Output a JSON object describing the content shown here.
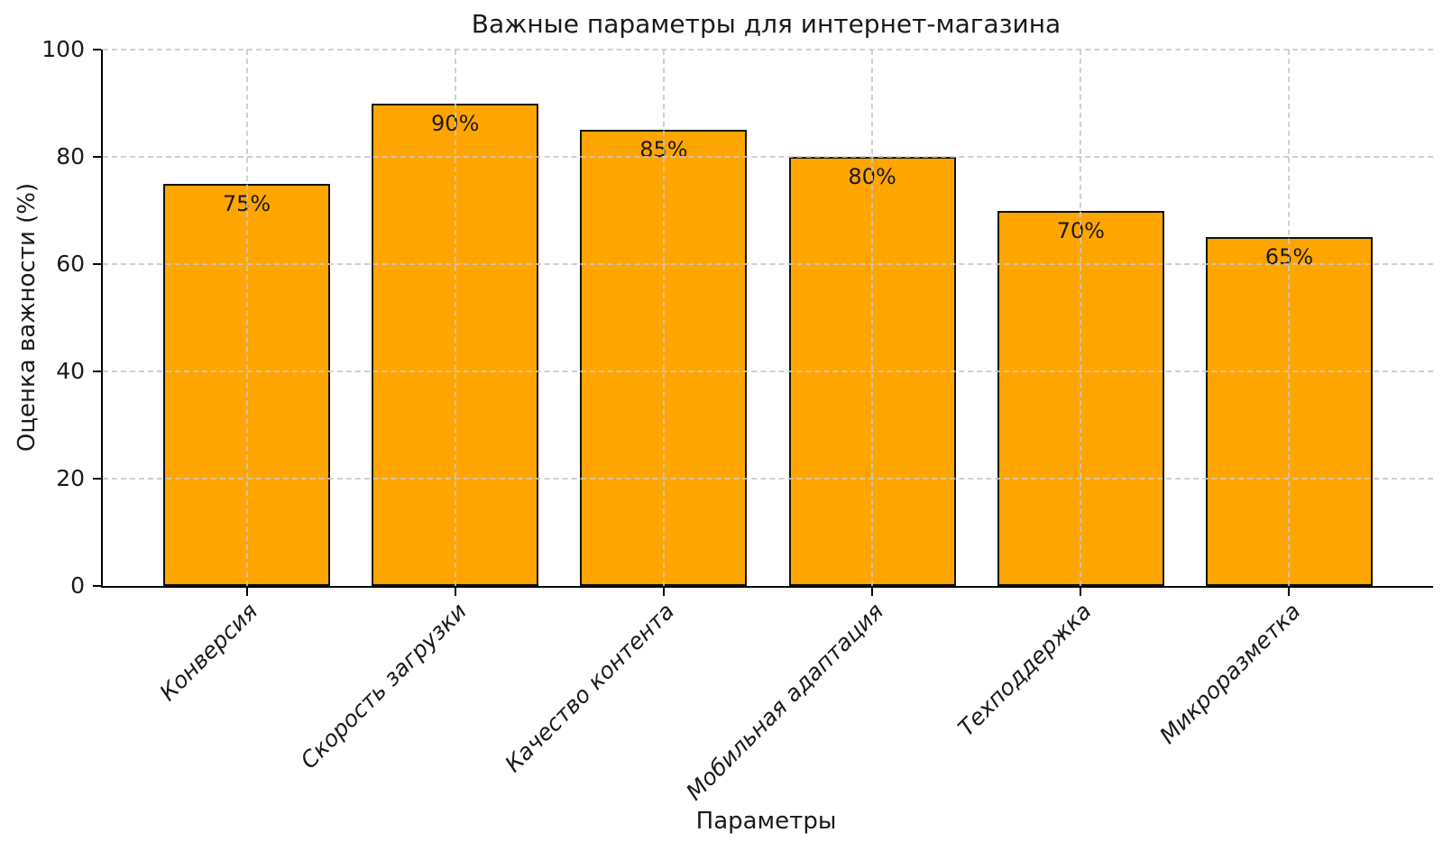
{
  "chart_data": {
    "type": "bar",
    "title": "Важные параметры для интернет-магазина",
    "xlabel": "Параметры",
    "ylabel": "Оценка важности (%)",
    "categories": [
      "Конверсия",
      "Скорость загрузки",
      "Качество контента",
      "Мобильная адаптация",
      "Техподдержка",
      "Микроразметка"
    ],
    "values": [
      75,
      90,
      85,
      80,
      70,
      65
    ],
    "bar_labels": [
      "75%",
      "90%",
      "85%",
      "80%",
      "70%",
      "65%"
    ],
    "ylim": [
      0,
      100
    ],
    "yticks": [
      0,
      20,
      40,
      60,
      80,
      100
    ],
    "grid": "dashed",
    "legend": "none",
    "bar_color": "#ffa500",
    "bar_edge_color": "#111111",
    "grid_color": "#cccccc",
    "text_color": "#1a1a1a"
  }
}
